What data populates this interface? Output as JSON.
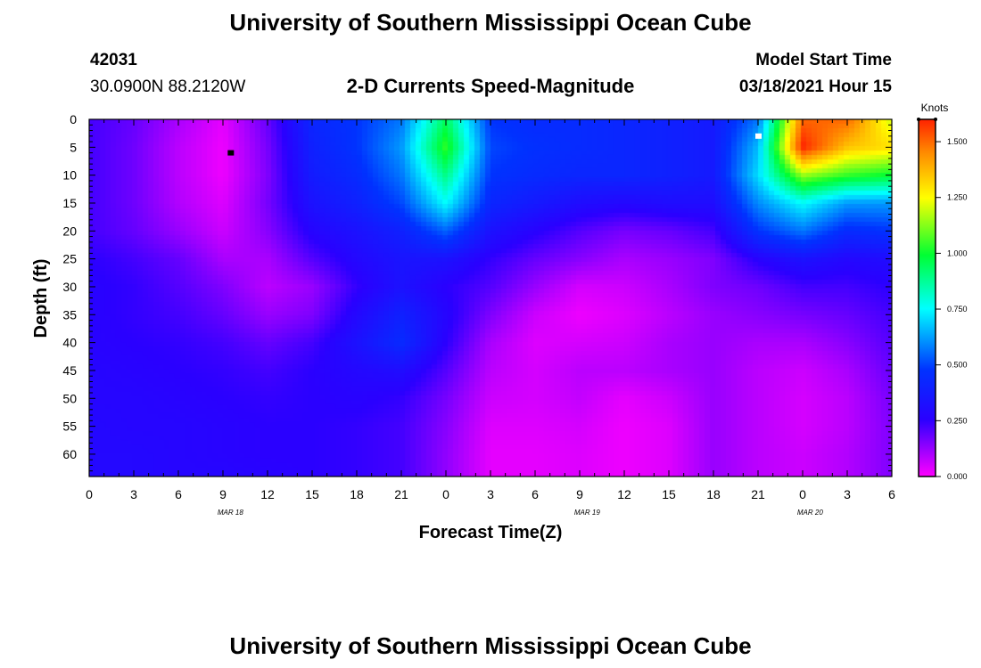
{
  "page": {
    "title_top": "University of Southern Mississippi Ocean Cube",
    "title_bottom": "University of Southern Mississippi Ocean Cube",
    "station_id": "42031",
    "station_coords": "30.0900N 88.2120W",
    "model_start_label": "Model Start Time",
    "model_start_value": "03/18/2021 Hour 15"
  },
  "chart_data": {
    "type": "heatmap",
    "title": "2-D Currents Speed-Magnitude",
    "xlabel": "Forecast Time(Z)",
    "ylabel": "Depth (ft)",
    "x_tick_labels": [
      "0",
      "3",
      "6",
      "9",
      "12",
      "15",
      "18",
      "21",
      "0",
      "3",
      "6",
      "9",
      "12",
      "15",
      "18",
      "21",
      "0",
      "3",
      "6"
    ],
    "date_labels": [
      "MAR 18",
      "MAR 19",
      "MAR 20"
    ],
    "y_ticks": [
      0,
      5,
      10,
      15,
      20,
      25,
      30,
      35,
      40,
      45,
      50,
      55,
      60
    ],
    "ylim": [
      0,
      64
    ],
    "x_range_hours": [
      0,
      54
    ],
    "colorbar": {
      "label": "Knots",
      "range": [
        0.0,
        1.6
      ],
      "tick_labels": [
        "0.000",
        "0.250",
        "0.500",
        "0.750",
        "1.000",
        "1.250",
        "1.500"
      ],
      "colors": [
        "#ff00ff",
        "#2a00ff",
        "#0033ff",
        "#00ffff",
        "#00ff33",
        "#ffff00",
        "#ff0000"
      ]
    },
    "speed_field_knots": {
      "times_hours": [
        0,
        3,
        6,
        9,
        12,
        15,
        18,
        21,
        24,
        27,
        30,
        33,
        36,
        39,
        42,
        45,
        48,
        51,
        54
      ],
      "depths_ft": [
        0,
        5,
        10,
        15,
        20,
        25,
        30,
        35,
        40,
        45,
        50,
        55,
        60,
        64
      ],
      "values": [
        [
          0.22,
          0.18,
          0.1,
          0.03,
          0.18,
          0.4,
          0.45,
          0.55,
          0.95,
          0.45,
          0.42,
          0.42,
          0.4,
          0.38,
          0.35,
          0.55,
          1.5,
          1.5,
          1.2
        ],
        [
          0.22,
          0.17,
          0.08,
          0.02,
          0.16,
          0.38,
          0.45,
          0.6,
          1.05,
          0.48,
          0.44,
          0.42,
          0.4,
          0.38,
          0.35,
          0.65,
          1.6,
          1.35,
          1.3
        ],
        [
          0.22,
          0.17,
          0.08,
          0.02,
          0.15,
          0.36,
          0.42,
          0.55,
          0.9,
          0.45,
          0.42,
          0.4,
          0.4,
          0.38,
          0.35,
          0.7,
          1.15,
          1.05,
          1.0
        ],
        [
          0.22,
          0.17,
          0.09,
          0.04,
          0.16,
          0.32,
          0.38,
          0.48,
          0.75,
          0.4,
          0.35,
          0.3,
          0.28,
          0.3,
          0.3,
          0.58,
          0.75,
          0.6,
          0.6
        ],
        [
          0.22,
          0.18,
          0.12,
          0.06,
          0.14,
          0.27,
          0.32,
          0.38,
          0.52,
          0.32,
          0.26,
          0.2,
          0.16,
          0.18,
          0.22,
          0.45,
          0.55,
          0.42,
          0.45
        ],
        [
          0.25,
          0.22,
          0.18,
          0.1,
          0.1,
          0.2,
          0.28,
          0.33,
          0.32,
          0.24,
          0.18,
          0.14,
          0.1,
          0.12,
          0.15,
          0.26,
          0.32,
          0.28,
          0.3
        ],
        [
          0.26,
          0.24,
          0.2,
          0.15,
          0.08,
          0.12,
          0.24,
          0.32,
          0.25,
          0.2,
          0.12,
          0.05,
          0.06,
          0.1,
          0.15,
          0.17,
          0.22,
          0.22,
          0.25
        ],
        [
          0.26,
          0.24,
          0.22,
          0.18,
          0.12,
          0.15,
          0.28,
          0.38,
          0.27,
          0.15,
          0.06,
          0.02,
          0.04,
          0.08,
          0.12,
          0.14,
          0.16,
          0.18,
          0.22
        ],
        [
          0.26,
          0.25,
          0.24,
          0.22,
          0.18,
          0.22,
          0.32,
          0.42,
          0.25,
          0.1,
          0.04,
          0.05,
          0.06,
          0.1,
          0.12,
          0.1,
          0.1,
          0.14,
          0.2
        ],
        [
          0.27,
          0.26,
          0.25,
          0.24,
          0.22,
          0.25,
          0.28,
          0.3,
          0.2,
          0.08,
          0.05,
          0.08,
          0.08,
          0.1,
          0.12,
          0.08,
          0.06,
          0.1,
          0.18
        ],
        [
          0.27,
          0.27,
          0.26,
          0.25,
          0.24,
          0.25,
          0.26,
          0.24,
          0.16,
          0.06,
          0.05,
          0.07,
          0.03,
          0.06,
          0.12,
          0.08,
          0.05,
          0.08,
          0.16
        ],
        [
          0.28,
          0.27,
          0.27,
          0.26,
          0.25,
          0.25,
          0.24,
          0.22,
          0.14,
          0.04,
          0.04,
          0.05,
          0.02,
          0.04,
          0.12,
          0.08,
          0.05,
          0.08,
          0.15
        ],
        [
          0.28,
          0.28,
          0.27,
          0.26,
          0.25,
          0.25,
          0.24,
          0.22,
          0.13,
          0.03,
          0.03,
          0.04,
          0.02,
          0.04,
          0.12,
          0.08,
          0.06,
          0.09,
          0.15
        ],
        [
          0.28,
          0.28,
          0.27,
          0.27,
          0.26,
          0.25,
          0.24,
          0.22,
          0.13,
          0.03,
          0.03,
          0.04,
          0.02,
          0.04,
          0.12,
          0.08,
          0.06,
          0.09,
          0.15
        ]
      ]
    },
    "markers": [
      {
        "kind": "min",
        "time_hours": 9.5,
        "depth_ft": 6,
        "color": "#000000"
      },
      {
        "kind": "max",
        "time_hours": 45,
        "depth_ft": 3,
        "color": "#ffffff"
      }
    ]
  }
}
